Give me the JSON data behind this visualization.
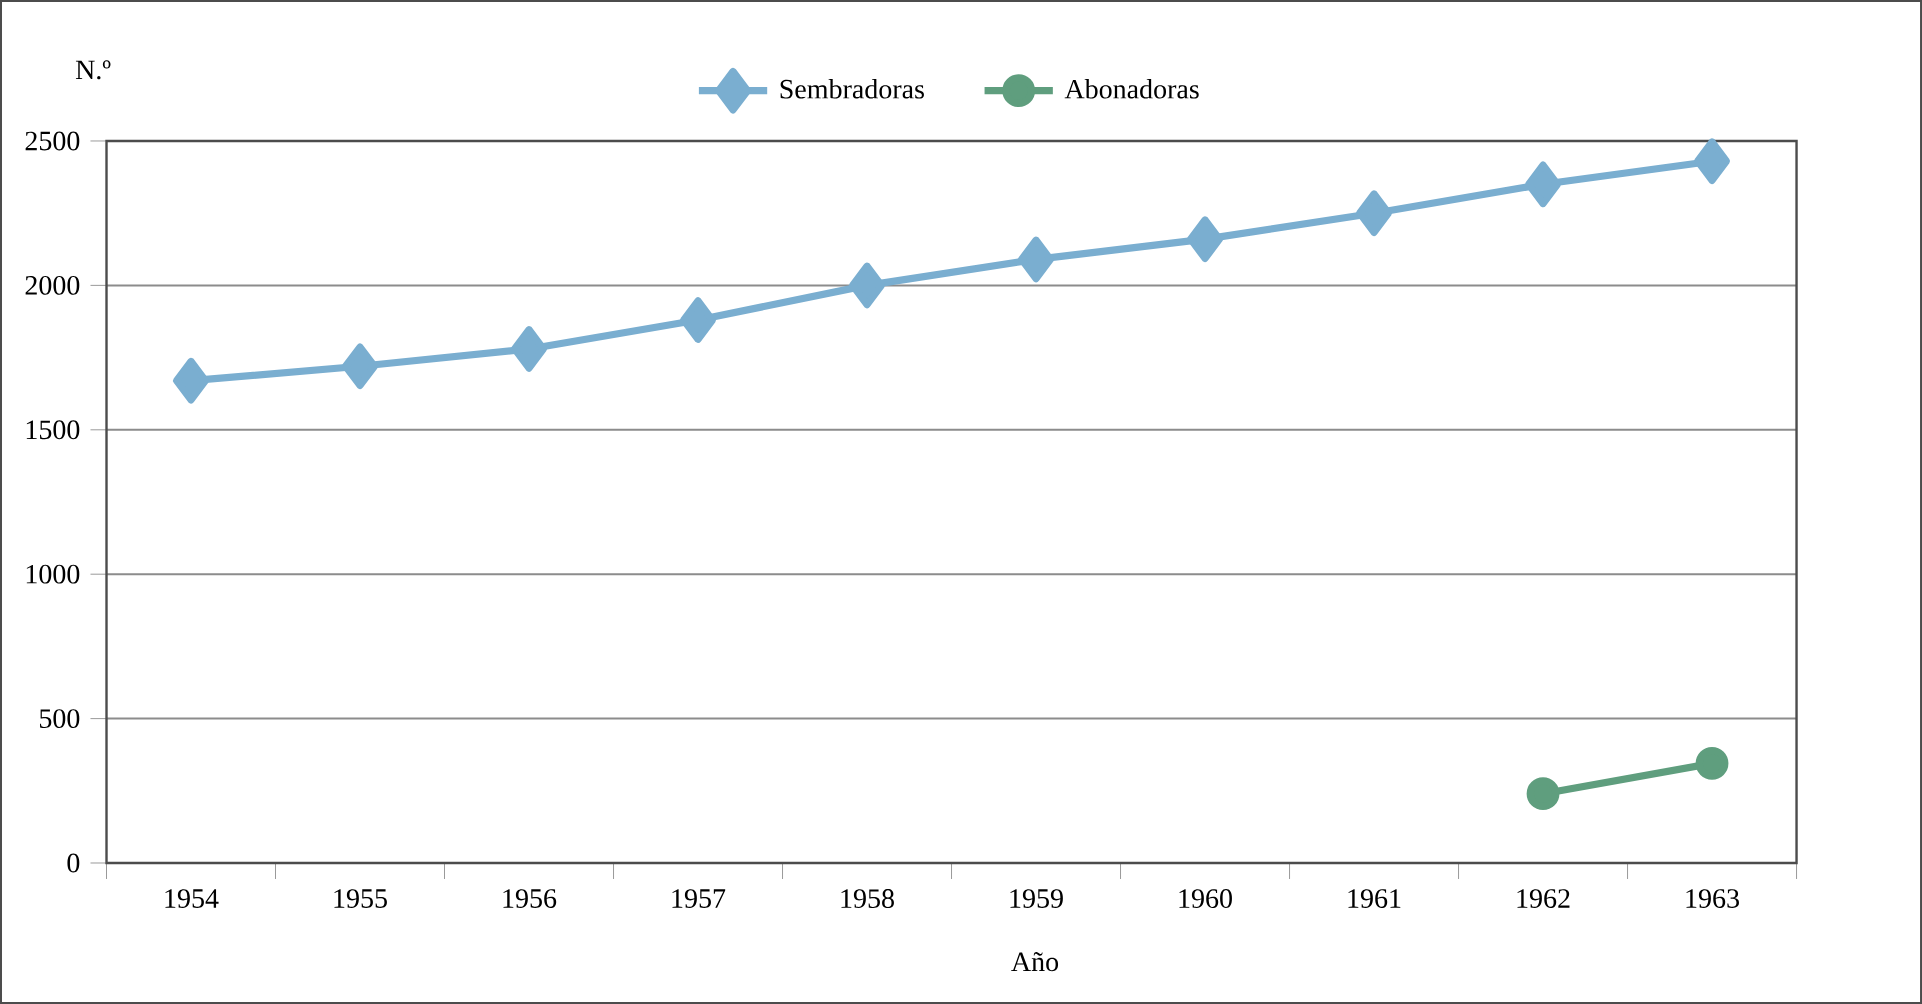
{
  "chart_data": {
    "type": "line",
    "xlabel": "Año",
    "ylabel": "N.º",
    "categories": [
      "1954",
      "1955",
      "1956",
      "1957",
      "1958",
      "1959",
      "1960",
      "1961",
      "1962",
      "1963"
    ],
    "series": [
      {
        "name": "Sembradoras",
        "color": "#7aaed0",
        "marker": "diamond",
        "values": [
          1670,
          1720,
          1780,
          1880,
          2000,
          2090,
          2160,
          2250,
          2350,
          2430
        ]
      },
      {
        "name": "Abonadoras",
        "color": "#5f9e7e",
        "marker": "circle",
        "values": [
          null,
          null,
          null,
          null,
          null,
          null,
          null,
          null,
          240,
          345
        ]
      }
    ],
    "ylim": [
      0,
      2500
    ],
    "yticks": [
      0,
      500,
      1000,
      1500,
      2000,
      2500
    ],
    "grid": "y",
    "legend": "top",
    "line_style": "solid"
  }
}
